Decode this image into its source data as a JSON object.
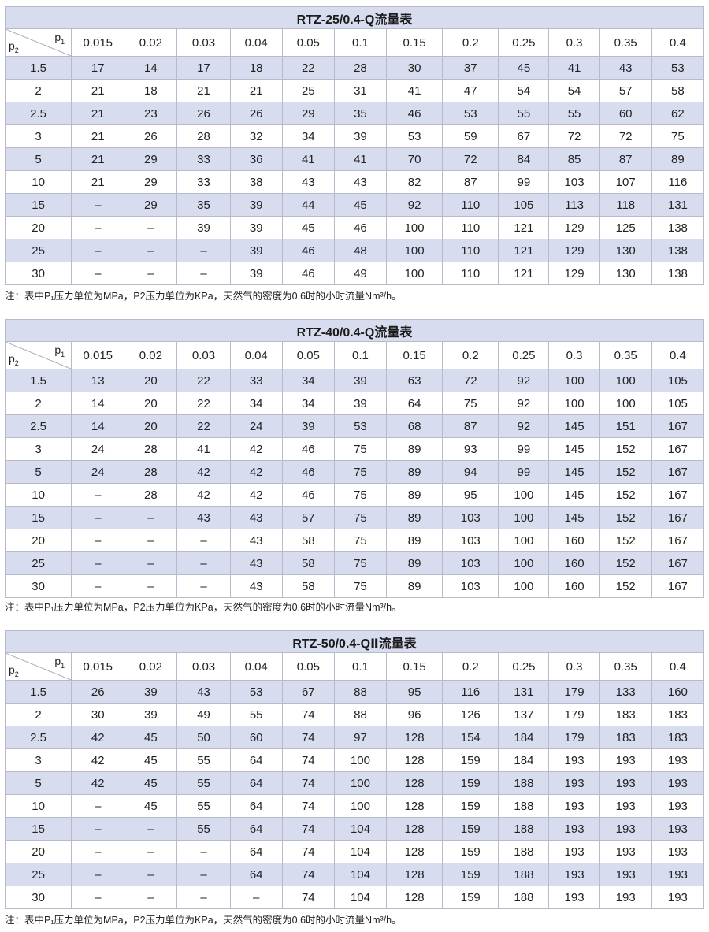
{
  "columns": [
    "0.015",
    "0.02",
    "0.03",
    "0.04",
    "0.05",
    "0.1",
    "0.15",
    "0.2",
    "0.25",
    "0.3",
    "0.35",
    "0.4"
  ],
  "axis": {
    "p1": "p",
    "p1_sub": "1",
    "p2": "p",
    "p2_sub": "2"
  },
  "note_text": "注：表中P₁压力单位为MPa，P2压力单位为KPa，天然气的密度为0.6时的小时流量Nm³/h。",
  "tables": [
    {
      "title": "RTZ-25/0.4-Q流量表",
      "rows": [
        [
          "1.5",
          "17",
          "14",
          "17",
          "18",
          "22",
          "28",
          "30",
          "37",
          "45",
          "41",
          "43",
          "53"
        ],
        [
          "2",
          "21",
          "18",
          "21",
          "21",
          "25",
          "31",
          "41",
          "47",
          "54",
          "54",
          "57",
          "58"
        ],
        [
          "2.5",
          "21",
          "23",
          "26",
          "26",
          "29",
          "35",
          "46",
          "53",
          "55",
          "55",
          "60",
          "62"
        ],
        [
          "3",
          "21",
          "26",
          "28",
          "32",
          "34",
          "39",
          "53",
          "59",
          "67",
          "72",
          "72",
          "75"
        ],
        [
          "5",
          "21",
          "29",
          "33",
          "36",
          "41",
          "41",
          "70",
          "72",
          "84",
          "85",
          "87",
          "89"
        ],
        [
          "10",
          "21",
          "29",
          "33",
          "38",
          "43",
          "43",
          "82",
          "87",
          "99",
          "103",
          "107",
          "116"
        ],
        [
          "15",
          "–",
          "29",
          "35",
          "39",
          "44",
          "45",
          "92",
          "110",
          "105",
          "113",
          "118",
          "131"
        ],
        [
          "20",
          "–",
          "–",
          "39",
          "39",
          "45",
          "46",
          "100",
          "110",
          "121",
          "129",
          "125",
          "138"
        ],
        [
          "25",
          "–",
          "–",
          "–",
          "39",
          "46",
          "48",
          "100",
          "110",
          "121",
          "129",
          "130",
          "138"
        ],
        [
          "30",
          "–",
          "–",
          "–",
          "39",
          "46",
          "49",
          "100",
          "110",
          "121",
          "129",
          "130",
          "138"
        ]
      ]
    },
    {
      "title": "RTZ-40/0.4-Q流量表",
      "rows": [
        [
          "1.5",
          "13",
          "20",
          "22",
          "33",
          "34",
          "39",
          "63",
          "72",
          "92",
          "100",
          "100",
          "105"
        ],
        [
          "2",
          "14",
          "20",
          "22",
          "34",
          "34",
          "39",
          "64",
          "75",
          "92",
          "100",
          "100",
          "105"
        ],
        [
          "2.5",
          "14",
          "20",
          "22",
          "24",
          "39",
          "53",
          "68",
          "87",
          "92",
          "145",
          "151",
          "167"
        ],
        [
          "3",
          "24",
          "28",
          "41",
          "42",
          "46",
          "75",
          "89",
          "93",
          "99",
          "145",
          "152",
          "167"
        ],
        [
          "5",
          "24",
          "28",
          "42",
          "42",
          "46",
          "75",
          "89",
          "94",
          "99",
          "145",
          "152",
          "167"
        ],
        [
          "10",
          "–",
          "28",
          "42",
          "42",
          "46",
          "75",
          "89",
          "95",
          "100",
          "145",
          "152",
          "167"
        ],
        [
          "15",
          "–",
          "–",
          "43",
          "43",
          "57",
          "75",
          "89",
          "103",
          "100",
          "145",
          "152",
          "167"
        ],
        [
          "20",
          "–",
          "–",
          "–",
          "43",
          "58",
          "75",
          "89",
          "103",
          "100",
          "160",
          "152",
          "167"
        ],
        [
          "25",
          "–",
          "–",
          "–",
          "43",
          "58",
          "75",
          "89",
          "103",
          "100",
          "160",
          "152",
          "167"
        ],
        [
          "30",
          "–",
          "–",
          "–",
          "43",
          "58",
          "75",
          "89",
          "103",
          "100",
          "160",
          "152",
          "167"
        ]
      ]
    },
    {
      "title": "RTZ-50/0.4-QⅡ流量表",
      "rows": [
        [
          "1.5",
          "26",
          "39",
          "43",
          "53",
          "67",
          "88",
          "95",
          "116",
          "131",
          "179",
          "133",
          "160"
        ],
        [
          "2",
          "30",
          "39",
          "49",
          "55",
          "74",
          "88",
          "96",
          "126",
          "137",
          "179",
          "183",
          "183"
        ],
        [
          "2.5",
          "42",
          "45",
          "50",
          "60",
          "74",
          "97",
          "128",
          "154",
          "184",
          "179",
          "183",
          "183"
        ],
        [
          "3",
          "42",
          "45",
          "55",
          "64",
          "74",
          "100",
          "128",
          "159",
          "184",
          "193",
          "193",
          "193"
        ],
        [
          "5",
          "42",
          "45",
          "55",
          "64",
          "74",
          "100",
          "128",
          "159",
          "188",
          "193",
          "193",
          "193"
        ],
        [
          "10",
          "–",
          "45",
          "55",
          "64",
          "74",
          "100",
          "128",
          "159",
          "188",
          "193",
          "193",
          "193"
        ],
        [
          "15",
          "–",
          "–",
          "55",
          "64",
          "74",
          "104",
          "128",
          "159",
          "188",
          "193",
          "193",
          "193"
        ],
        [
          "20",
          "–",
          "–",
          "–",
          "64",
          "74",
          "104",
          "128",
          "159",
          "188",
          "193",
          "193",
          "193"
        ],
        [
          "25",
          "–",
          "–",
          "–",
          "64",
          "74",
          "104",
          "128",
          "159",
          "188",
          "193",
          "193",
          "193"
        ],
        [
          "30",
          "–",
          "–",
          "–",
          "–",
          "74",
          "104",
          "128",
          "159",
          "188",
          "193",
          "193",
          "193"
        ]
      ]
    }
  ]
}
